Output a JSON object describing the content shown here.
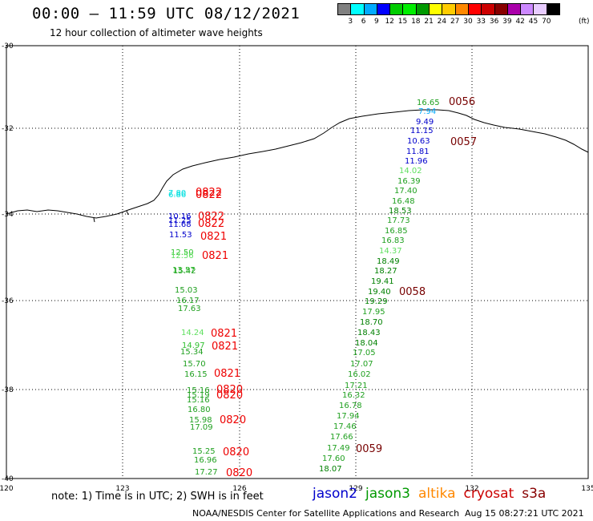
{
  "header": {
    "title": "00:00 – 11:59 UTC 08/12/2021",
    "subtitle": "12 hour collection of altimeter wave heights"
  },
  "legend": {
    "unit": "(ft)",
    "entries": [
      {
        "label": "3",
        "color": "#808080"
      },
      {
        "label": "6",
        "color": "#00ffff"
      },
      {
        "label": "9",
        "color": "#00aaff"
      },
      {
        "label": "12",
        "color": "#0000ff"
      },
      {
        "label": "15",
        "color": "#00cc00"
      },
      {
        "label": "18",
        "color": "#00ee00"
      },
      {
        "label": "21",
        "color": "#009900"
      },
      {
        "label": "24",
        "color": "#ffff00"
      },
      {
        "label": "27",
        "color": "#ffcc00"
      },
      {
        "label": "30",
        "color": "#ff8800"
      },
      {
        "label": "33",
        "color": "#ff0000"
      },
      {
        "label": "36",
        "color": "#cc0000"
      },
      {
        "label": "39",
        "color": "#880000"
      },
      {
        "label": "42",
        "color": "#aa00aa"
      },
      {
        "label": "45",
        "color": "#cc88ff"
      },
      {
        "label": "70",
        "color": "#e8ccff"
      },
      {
        "label": "",
        "color": "#000000"
      }
    ]
  },
  "axes": {
    "lat_labels": [
      "-30",
      "-32",
      "-34",
      "-36",
      "-38",
      "-40"
    ],
    "lon_labels": [
      "120",
      "123",
      "126",
      "129",
      "132",
      "135"
    ]
  },
  "west_track": {
    "values": [
      {
        "v": "7.80",
        "c": "#00e0e0"
      },
      {
        "v": "6.86",
        "c": "#00e0e0"
      },
      {
        "v": "10.16",
        "c": "#0000cc"
      },
      {
        "v": "11.25",
        "c": "#0000cc"
      },
      {
        "v": "11.68",
        "c": "#0000cc"
      },
      {
        "v": "11.53",
        "c": "#0000cc"
      },
      {
        "v": "12.50",
        "c": "#30c030"
      },
      {
        "v": "12.56",
        "c": "#60e060"
      },
      {
        "v": "13.57",
        "c": "#30c030"
      },
      {
        "v": "15.42",
        "c": "#20a020"
      },
      {
        "v": "15.03",
        "c": "#20a020"
      },
      {
        "v": "16.17",
        "c": "#20a020"
      },
      {
        "v": "17.63",
        "c": "#20a020"
      },
      {
        "v": "14.24",
        "c": "#60e060"
      },
      {
        "v": "14.97",
        "c": "#30c030"
      },
      {
        "v": "15.34",
        "c": "#20a020"
      },
      {
        "v": "15.70",
        "c": "#20a020"
      },
      {
        "v": "16.15",
        "c": "#20a020"
      },
      {
        "v": "15.16",
        "c": "#20a020"
      },
      {
        "v": "15.19",
        "c": "#20a020"
      },
      {
        "v": "15.16",
        "c": "#20a020"
      },
      {
        "v": "16.80",
        "c": "#20a020"
      },
      {
        "v": "15.98",
        "c": "#20a020"
      },
      {
        "v": "17.09",
        "c": "#20a020"
      },
      {
        "v": "15.25",
        "c": "#20a020"
      },
      {
        "v": "16.96",
        "c": "#20a020"
      },
      {
        "v": "17.27",
        "c": "#20a020"
      }
    ],
    "times": [
      "0822",
      "0822",
      "0822",
      "0822",
      "0821",
      "0821",
      "0821",
      "0821",
      "0821",
      "0820",
      "0820",
      "0820",
      "0820",
      "0820"
    ]
  },
  "east_track": {
    "values": [
      {
        "v": "16.65",
        "c": "#20a020"
      },
      {
        "v": "7.94",
        "c": "#00aaff"
      },
      {
        "v": "9.49",
        "c": "#0000cc"
      },
      {
        "v": "11.15",
        "c": "#0000cc"
      },
      {
        "v": "10.63",
        "c": "#0000cc"
      },
      {
        "v": "11.81",
        "c": "#0000cc"
      },
      {
        "v": "11.96",
        "c": "#0000cc"
      },
      {
        "v": "14.02",
        "c": "#60e060"
      },
      {
        "v": "16.39",
        "c": "#20a020"
      },
      {
        "v": "17.40",
        "c": "#20a020"
      },
      {
        "v": "16.48",
        "c": "#20a020"
      },
      {
        "v": "18.53",
        "c": "#008000"
      },
      {
        "v": "17.73",
        "c": "#20a020"
      },
      {
        "v": "16.85",
        "c": "#20a020"
      },
      {
        "v": "16.83",
        "c": "#20a020"
      },
      {
        "v": "14.37",
        "c": "#60e060"
      },
      {
        "v": "18.49",
        "c": "#008000"
      },
      {
        "v": "18.27",
        "c": "#008000"
      },
      {
        "v": "19.41",
        "c": "#008000"
      },
      {
        "v": "19.40",
        "c": "#008000"
      },
      {
        "v": "19.29",
        "c": "#008000"
      },
      {
        "v": "17.95",
        "c": "#20a020"
      },
      {
        "v": "18.70",
        "c": "#008000"
      },
      {
        "v": "18.43",
        "c": "#008000"
      },
      {
        "v": "18.04",
        "c": "#008000"
      },
      {
        "v": "17.05",
        "c": "#20a020"
      },
      {
        "v": "17.07",
        "c": "#20a020"
      },
      {
        "v": "16.02",
        "c": "#20a020"
      },
      {
        "v": "17.21",
        "c": "#20a020"
      },
      {
        "v": "16.32",
        "c": "#20a020"
      },
      {
        "v": "16.78",
        "c": "#20a020"
      },
      {
        "v": "17.94",
        "c": "#20a020"
      },
      {
        "v": "17.46",
        "c": "#20a020"
      },
      {
        "v": "17.66",
        "c": "#20a020"
      },
      {
        "v": "17.49",
        "c": "#20a020"
      },
      {
        "v": "17.60",
        "c": "#20a020"
      },
      {
        "v": "18.07",
        "c": "#008000"
      }
    ],
    "times": [
      "0056",
      "0057",
      "0058",
      "0059"
    ]
  },
  "footer": {
    "note": "note: 1) Time is in UTC; 2) SWH is in feet",
    "satellites": [
      {
        "name": "jason2",
        "color": "#0000cc"
      },
      {
        "name": "jason3",
        "color": "#009900"
      },
      {
        "name": "altika",
        "color": "#ff8800"
      },
      {
        "name": "cryosat",
        "color": "#cc0000"
      },
      {
        "name": "s3a",
        "color": "#880000"
      }
    ],
    "credit": "NOAA/NESDIS Center for Satellite Applications and Research",
    "timestamp": "Aug 15 08:27:21 UTC 2021"
  }
}
